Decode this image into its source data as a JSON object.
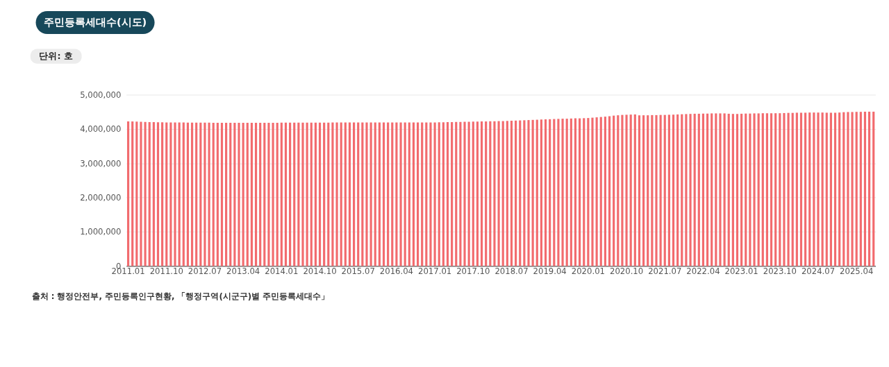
{
  "chart_data": {
    "type": "bar",
    "title": "주민등록세대수(시도)",
    "ylabel": "단위: 호",
    "annotations": [
      "출처 : 행정안전부, 주민등록인구현황, 「행정구역(시군구)별 주민등록세대수」"
    ],
    "categories": [
      "2011.01",
      null,
      null,
      null,
      null,
      null,
      null,
      null,
      null,
      "2011.10",
      null,
      null,
      null,
      null,
      null,
      null,
      null,
      null,
      "2012.07",
      null,
      null,
      null,
      null,
      null,
      null,
      null,
      null,
      "2013.04",
      null,
      null,
      null,
      null,
      null,
      null,
      null,
      null,
      "2014.01",
      null,
      null,
      null,
      null,
      null,
      null,
      null,
      null,
      "2014.10",
      null,
      null,
      null,
      null,
      null,
      null,
      null,
      null,
      "2015.07",
      null,
      null,
      null,
      null,
      null,
      null,
      null,
      null,
      "2016.04",
      null,
      null,
      null,
      null,
      null,
      null,
      null,
      null,
      "2017.01",
      null,
      null,
      null,
      null,
      null,
      null,
      null,
      null,
      "2017.10",
      null,
      null,
      null,
      null,
      null,
      null,
      null,
      null,
      "2018.07",
      null,
      null,
      null,
      null,
      null,
      null,
      null,
      null,
      "2019.04",
      null,
      null,
      null,
      null,
      null,
      null,
      null,
      null,
      "2020.01",
      null,
      null,
      null,
      null,
      null,
      null,
      null,
      null,
      "2020.10",
      null,
      null,
      null,
      null,
      null,
      null,
      null,
      null,
      "2021.07",
      null,
      null,
      null,
      null,
      null,
      null,
      null,
      null,
      "2022.04",
      null,
      null,
      null,
      null,
      null,
      null,
      null,
      null,
      "2023.01",
      null,
      null,
      null,
      null,
      null,
      null,
      null,
      null,
      "2023.10",
      null,
      null,
      null,
      null,
      null,
      null,
      null,
      null,
      "2024.07",
      null,
      null,
      null,
      null,
      null,
      null,
      null,
      null,
      "2025.04",
      null,
      null,
      null,
      null
    ],
    "series": [
      {
        "color": "#f26b6e",
        "values": [
          4220000,
          4220000,
          4215000,
          4210000,
          4205000,
          4200000,
          4200000,
          4195000,
          4195000,
          4190000,
          4190000,
          4190000,
          4190000,
          4190000,
          4185000,
          4185000,
          4185000,
          4185000,
          4185000,
          4185000,
          4180000,
          4180000,
          4180000,
          4180000,
          4180000,
          4180000,
          4180000,
          4180000,
          4180000,
          4180000,
          4180000,
          4180000,
          4180000,
          4180000,
          4180000,
          4180000,
          4185000,
          4185000,
          4185000,
          4185000,
          4185000,
          4185000,
          4185000,
          4185000,
          4185000,
          4185000,
          4185000,
          4185000,
          4190000,
          4190000,
          4190000,
          4190000,
          4190000,
          4190000,
          4190000,
          4190000,
          4190000,
          4190000,
          4190000,
          4190000,
          4190000,
          4190000,
          4190000,
          4190000,
          4190000,
          4190000,
          4190000,
          4190000,
          4190000,
          4190000,
          4190000,
          4190000,
          4190000,
          4195000,
          4195000,
          4200000,
          4200000,
          4205000,
          4205000,
          4210000,
          4210000,
          4215000,
          4215000,
          4220000,
          4220000,
          4225000,
          4225000,
          4230000,
          4230000,
          4235000,
          4240000,
          4245000,
          4250000,
          4255000,
          4260000,
          4265000,
          4270000,
          4275000,
          4280000,
          4285000,
          4290000,
          4295000,
          4300000,
          4300000,
          4305000,
          4310000,
          4310000,
          4315000,
          4320000,
          4330000,
          4340000,
          4350000,
          4360000,
          4375000,
          4390000,
          4400000,
          4410000,
          4415000,
          4420000,
          4425000,
          4400000,
          4400000,
          4400000,
          4405000,
          4405000,
          4410000,
          4410000,
          4415000,
          4420000,
          4425000,
          4430000,
          4435000,
          4440000,
          4445000,
          4445000,
          4450000,
          4450000,
          4455000,
          4455000,
          4455000,
          4455000,
          4445000,
          4440000,
          4440000,
          4445000,
          4450000,
          4450000,
          4455000,
          4455000,
          4460000,
          4460000,
          4460000,
          4460000,
          4460000,
          4465000,
          4470000,
          4470000,
          4475000,
          4475000,
          4475000,
          4480000,
          4480000,
          4480000,
          4480000,
          4475000,
          4475000,
          4475000,
          4480000,
          4490000,
          4495000,
          4495000,
          4500000,
          4500000,
          4505000,
          4505000,
          4505000
        ]
      }
    ],
    "ylim": [
      0,
      5000000
    ],
    "yticks": [
      0,
      {
        "value": 1000000,
        "label": "1,000,000"
      },
      {
        "value": 2000000,
        "label": "2,000,000"
      },
      {
        "value": 3000000,
        "label": "3,000,000"
      },
      {
        "value": 4000000,
        "label": "4,000,000"
      },
      {
        "value": 5000000,
        "label": "5,000,000"
      }
    ],
    "grid": "y",
    "legend": false
  }
}
